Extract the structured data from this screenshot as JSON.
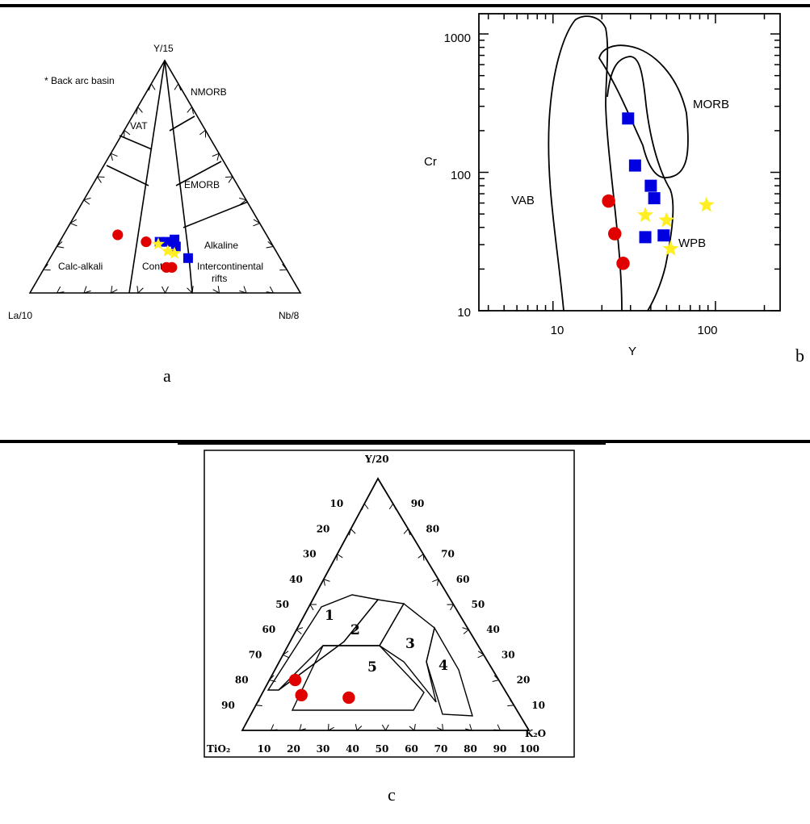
{
  "panel_a": {
    "caption": "a",
    "legend_note": "* Back arc basin",
    "apex_labels": {
      "top": "Y/15",
      "left": "La/10",
      "right": "Nb/8"
    },
    "field_labels": {
      "vat": "VAT",
      "nmorb": "NMORB",
      "emorb": "EMORB",
      "alkaline": "Alkaline",
      "calc_alkali": "Calc-alkali",
      "cont": "Cont.",
      "intercontinental": "Intercontinental",
      "rifts": "rifts"
    }
  },
  "panel_b": {
    "caption": "b",
    "xlabel": "Y",
    "ylabel": "Cr",
    "x_ticks": [
      "10",
      "100"
    ],
    "y_ticks": [
      "10",
      "100",
      "1000"
    ],
    "field_labels": {
      "vab": "VAB",
      "morb": "MORB",
      "wpb": "WPB"
    }
  },
  "panel_c": {
    "caption": "c",
    "apex_labels": {
      "top": "Y/20",
      "left": "TiO₂",
      "right": "K₂O"
    },
    "left_ticks": [
      "10",
      "20",
      "30",
      "40",
      "50",
      "60",
      "70",
      "80",
      "90"
    ],
    "right_ticks": [
      "90",
      "80",
      "70",
      "60",
      "50",
      "40",
      "30",
      "20",
      "10"
    ],
    "bottom_ticks": [
      "10",
      "20",
      "30",
      "40",
      "50",
      "60",
      "70",
      "80",
      "90",
      "100"
    ],
    "field_labels": [
      "1",
      "2",
      "3",
      "4",
      "5"
    ]
  },
  "chart_data": [
    {
      "type": "scatter",
      "diagram": "ternary",
      "apices": [
        "La/10",
        "Y/15",
        "Nb/8"
      ],
      "series": [
        {
          "marker": "circle",
          "color": "#e00000",
          "points": [
            {
              "left": 0.55,
              "top": 0.25,
              "right": 0.2
            },
            {
              "left": 0.46,
              "top": 0.22,
              "right": 0.32
            },
            {
              "left": 0.44,
              "top": 0.11,
              "right": 0.45
            },
            {
              "left": 0.42,
              "top": 0.11,
              "right": 0.47
            }
          ]
        },
        {
          "marker": "square",
          "color": "#0000e0",
          "points": [
            {
              "left": 0.41,
              "top": 0.22,
              "right": 0.37
            },
            {
              "left": 0.38,
              "top": 0.22,
              "right": 0.4
            },
            {
              "left": 0.35,
              "top": 0.23,
              "right": 0.42
            },
            {
              "left": 0.34,
              "top": 0.15,
              "right": 0.51
            },
            {
              "left": 0.36,
              "top": 0.2,
              "right": 0.44
            }
          ]
        },
        {
          "marker": "star",
          "color": "#ffee22",
          "points": [
            {
              "left": 0.42,
              "top": 0.21,
              "right": 0.37
            },
            {
              "left": 0.4,
              "top": 0.18,
              "right": 0.42
            },
            {
              "left": 0.38,
              "top": 0.17,
              "right": 0.45
            }
          ]
        }
      ]
    },
    {
      "type": "scatter",
      "xlabel": "Y",
      "ylabel": "Cr",
      "xscale": "log",
      "yscale": "log",
      "xlim": [
        3.5,
        250
      ],
      "ylim": [
        10,
        1400
      ],
      "series": [
        {
          "marker": "circle",
          "color": "#e00000",
          "points": [
            [
              22,
              62
            ],
            [
              24,
              36
            ],
            [
              27,
              22
            ]
          ]
        },
        {
          "marker": "square",
          "color": "#0000e0",
          "points": [
            [
              29,
              245
            ],
            [
              32,
              112
            ],
            [
              40,
              80
            ],
            [
              42,
              65
            ],
            [
              37,
              34
            ],
            [
              48,
              35
            ]
          ]
        },
        {
          "marker": "star",
          "color": "#ffee22",
          "points": [
            [
              37,
              49
            ],
            [
              50,
              45
            ],
            [
              53,
              28
            ],
            [
              88,
              58
            ]
          ]
        }
      ]
    },
    {
      "type": "scatter",
      "diagram": "ternary",
      "apices": [
        "TiO₂",
        "Y/20",
        "K₂O"
      ],
      "series": [
        {
          "marker": "circle",
          "color": "#e00000",
          "points": [
            {
              "left": 0.71,
              "top": 0.2,
              "right": 0.09
            },
            {
              "left": 0.72,
              "top": 0.14,
              "right": 0.14
            },
            {
              "left": 0.56,
              "top": 0.13,
              "right": 0.31
            }
          ]
        }
      ]
    }
  ]
}
